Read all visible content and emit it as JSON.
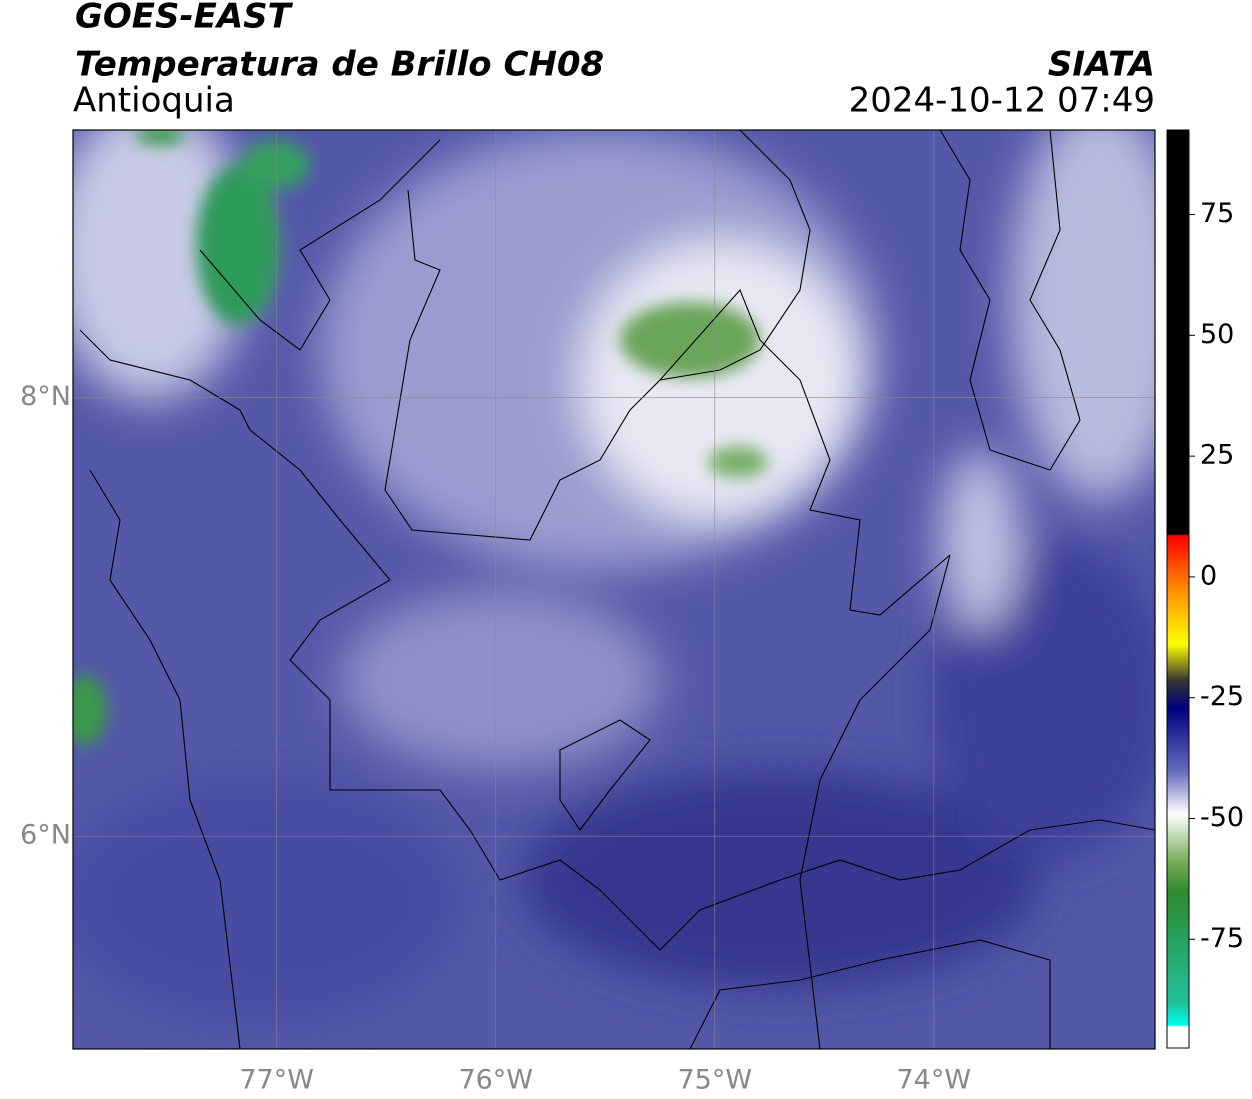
{
  "map": {
    "title": "GOES-EAST",
    "subtitle": "Temperatura de Brillo CH08",
    "region": "Antioquia",
    "source": "SIATA",
    "datetime": "2024-10-12 07:49",
    "xlim": [
      -77.93,
      -72.99
    ],
    "ylim": [
      5.03,
      9.22
    ],
    "xticks": [
      {
        "value": -77,
        "label": "77°W"
      },
      {
        "value": -76,
        "label": "76°W"
      },
      {
        "value": -75,
        "label": "75°W"
      },
      {
        "value": -74,
        "label": "74°W"
      }
    ],
    "yticks": [
      {
        "value": 6,
        "label": "6°N"
      },
      {
        "value": 8,
        "label": "8°N"
      }
    ],
    "grid": true,
    "colorbar": {
      "clim": [
        -97.5,
        92.5
      ],
      "ticks": [
        75,
        50,
        25,
        0,
        -25,
        -50,
        -75
      ]
    }
  }
}
